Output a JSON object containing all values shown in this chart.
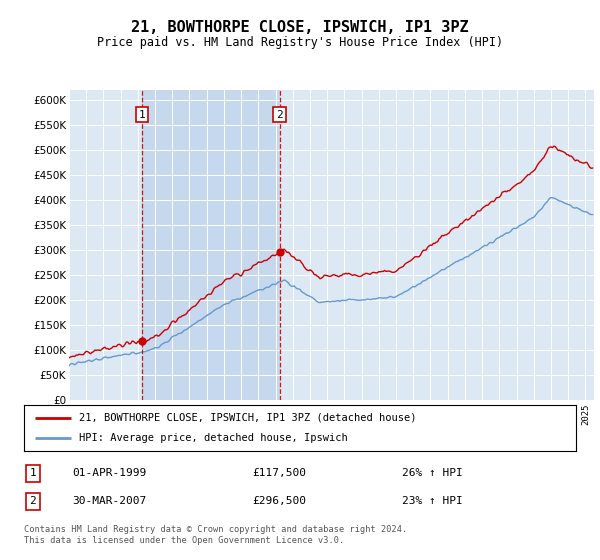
{
  "title": "21, BOWTHORPE CLOSE, IPSWICH, IP1 3PZ",
  "subtitle": "Price paid vs. HM Land Registry's House Price Index (HPI)",
  "property_label": "21, BOWTHORPE CLOSE, IPSWICH, IP1 3PZ (detached house)",
  "hpi_label": "HPI: Average price, detached house, Ipswich",
  "sale1_date": "01-APR-1999",
  "sale1_price": 117500,
  "sale1_pct": "26% ↑ HPI",
  "sale2_date": "30-MAR-2007",
  "sale2_price": 296500,
  "sale2_pct": "23% ↑ HPI",
  "footer": "Contains HM Land Registry data © Crown copyright and database right 2024.\nThis data is licensed under the Open Government Licence v3.0.",
  "property_color": "#cc0000",
  "hpi_color": "#6699cc",
  "background_color": "#dce9f5",
  "shade_color": "#c5d8ee",
  "ylim": [
    0,
    620000
  ],
  "yticks": [
    0,
    50000,
    100000,
    150000,
    200000,
    250000,
    300000,
    350000,
    400000,
    450000,
    500000,
    550000,
    600000
  ],
  "sale1_x_year": 1999.25,
  "sale2_x_year": 2007.23,
  "xlim_start": 1995.0,
  "xlim_end": 2025.5
}
